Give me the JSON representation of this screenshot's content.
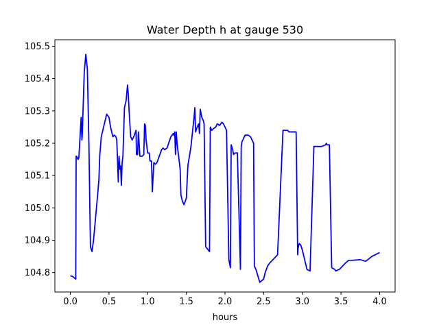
{
  "chart_data": {
    "type": "line",
    "title": "Water Depth h at gauge 530",
    "xlabel": "hours",
    "ylabel": "",
    "xlim": [
      -0.2,
      4.2
    ],
    "ylim": [
      104.74,
      105.52
    ],
    "xticks": [
      0.0,
      0.5,
      1.0,
      1.5,
      2.0,
      2.5,
      3.0,
      3.5,
      4.0
    ],
    "xtick_labels": [
      "0.0",
      "0.5",
      "1.0",
      "1.5",
      "2.0",
      "2.5",
      "3.0",
      "3.5",
      "4.0"
    ],
    "yticks": [
      104.8,
      104.9,
      105.0,
      105.1,
      105.2,
      105.3,
      105.4,
      105.5
    ],
    "ytick_labels": [
      "104.8",
      "104.9",
      "105.0",
      "105.1",
      "105.2",
      "105.3",
      "105.4",
      "105.5"
    ],
    "grid": false,
    "legend": "none",
    "series": [
      {
        "color": "#0000ff",
        "x": [
          0.0,
          0.03,
          0.07,
          0.075,
          0.08,
          0.1,
          0.11,
          0.14,
          0.15,
          0.155,
          0.16,
          0.18,
          0.2,
          0.22,
          0.24,
          0.26,
          0.28,
          0.3,
          0.33,
          0.36,
          0.37,
          0.38,
          0.4,
          0.43,
          0.45,
          0.47,
          0.5,
          0.52,
          0.55,
          0.57,
          0.59,
          0.6,
          0.61,
          0.62,
          0.63,
          0.64,
          0.65,
          0.66,
          0.67,
          0.68,
          0.7,
          0.72,
          0.74,
          0.75,
          0.76,
          0.78,
          0.8,
          0.82,
          0.85,
          0.855,
          0.87,
          0.88,
          0.9,
          0.93,
          0.95,
          0.96,
          0.97,
          0.98,
          1.0,
          1.02,
          1.03,
          1.05,
          1.06,
          1.08,
          1.1,
          1.12,
          1.15,
          1.18,
          1.2,
          1.22,
          1.25,
          1.3,
          1.33,
          1.34,
          1.35,
          1.36,
          1.37,
          1.38,
          1.42,
          1.43,
          1.45,
          1.47,
          1.5,
          1.52,
          1.56,
          1.6,
          1.61,
          1.62,
          1.64,
          1.66,
          1.67,
          1.68,
          1.7,
          1.72,
          1.73,
          1.75,
          1.8,
          1.81,
          1.83,
          1.85,
          1.88,
          1.9,
          1.93,
          1.96,
          1.98,
          2.02,
          2.05,
          2.07,
          2.08,
          2.1,
          2.11,
          2.13,
          2.16,
          2.2,
          2.21,
          2.22,
          2.23,
          2.26,
          2.3,
          2.33,
          2.35,
          2.37,
          2.38,
          2.4,
          2.45,
          2.5,
          2.52,
          2.55,
          2.58,
          2.62,
          2.68,
          2.75,
          2.8,
          2.81,
          2.83,
          2.85,
          2.86,
          2.9,
          2.92,
          2.94,
          2.945,
          2.96,
          2.98,
          3.0,
          3.03,
          3.06,
          3.1,
          3.15,
          3.2,
          3.25,
          3.3,
          3.31,
          3.32,
          3.35,
          3.38,
          3.42,
          3.43,
          3.44,
          3.48,
          3.52,
          3.56,
          3.6,
          3.65,
          3.75,
          3.82,
          3.9,
          3.95,
          4.0
        ],
        "values": [
          104.79,
          104.788,
          104.78,
          105.16,
          105.16,
          105.15,
          105.155,
          105.28,
          105.21,
          105.23,
          105.27,
          105.42,
          105.475,
          105.43,
          105.2,
          104.88,
          104.865,
          104.9,
          104.98,
          105.06,
          105.09,
          105.16,
          105.22,
          105.25,
          105.27,
          105.29,
          105.28,
          105.25,
          105.22,
          105.225,
          105.22,
          105.21,
          105.15,
          105.08,
          105.16,
          105.12,
          105.13,
          105.07,
          105.14,
          105.16,
          105.31,
          105.33,
          105.38,
          105.35,
          105.3,
          105.22,
          105.21,
          105.22,
          105.24,
          105.165,
          105.165,
          105.235,
          105.16,
          105.16,
          105.165,
          105.26,
          105.255,
          105.21,
          105.17,
          105.17,
          105.145,
          105.145,
          105.05,
          105.14,
          105.135,
          105.14,
          105.16,
          105.18,
          105.185,
          105.18,
          105.185,
          105.22,
          105.23,
          105.225,
          105.235,
          105.165,
          105.235,
          105.2,
          105.12,
          105.04,
          105.02,
          105.01,
          105.03,
          105.13,
          105.19,
          105.28,
          105.31,
          105.235,
          105.25,
          105.26,
          105.23,
          105.305,
          105.28,
          105.27,
          105.26,
          104.88,
          104.865,
          105.25,
          105.24,
          105.245,
          105.25,
          105.26,
          105.255,
          105.265,
          105.26,
          105.24,
          104.84,
          104.815,
          105.195,
          105.18,
          105.165,
          105.17,
          105.17,
          104.81,
          105.19,
          105.205,
          105.21,
          105.225,
          105.225,
          105.22,
          105.21,
          105.2,
          104.82,
          104.81,
          104.77,
          104.78,
          104.8,
          104.82,
          104.83,
          104.84,
          104.855,
          105.24,
          105.24,
          105.24,
          105.235,
          105.235,
          105.235,
          105.235,
          105.235,
          104.855,
          104.875,
          104.89,
          104.885,
          104.87,
          104.84,
          104.81,
          104.805,
          105.19,
          105.19,
          105.19,
          105.195,
          105.2,
          105.195,
          105.195,
          104.815,
          104.81,
          104.805,
          104.806,
          104.81,
          104.82,
          104.83,
          104.838,
          104.838,
          104.84,
          104.835,
          104.85,
          104.856,
          104.862
        ]
      }
    ]
  }
}
